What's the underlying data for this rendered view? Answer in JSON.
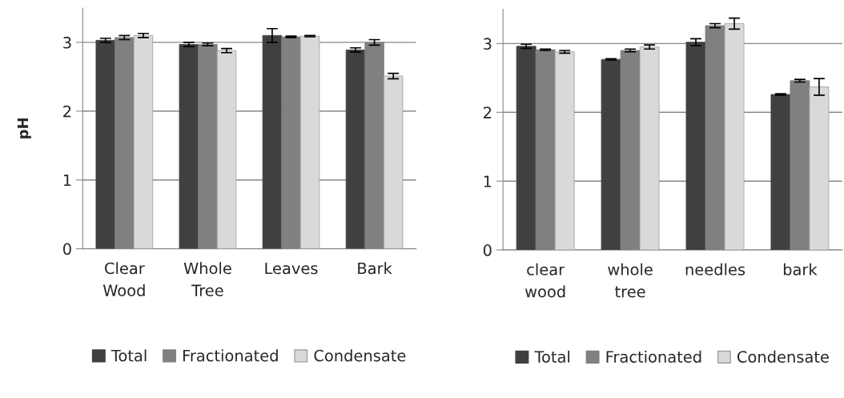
{
  "chart_data": [
    {
      "type": "bar",
      "ylabel": "pH",
      "categories": [
        "Clear\nWood",
        "Whole\nTree",
        "Leaves",
        "Bark"
      ],
      "ylim": [
        0,
        3.5
      ],
      "yticks": [
        0,
        1,
        2,
        3
      ],
      "grid": "y",
      "legend": "bottom",
      "series": [
        {
          "name": "Total",
          "color": "#404040",
          "values": [
            3.03,
            2.97,
            3.1,
            2.89
          ],
          "errors": [
            0.03,
            0.03,
            0.1,
            0.03
          ]
        },
        {
          "name": "Fractionated",
          "color": "#808080",
          "values": [
            3.07,
            2.97,
            3.08,
            3.0
          ],
          "errors": [
            0.03,
            0.02,
            0.01,
            0.04
          ]
        },
        {
          "name": "Condensate",
          "color": "#d9d9d9",
          "values": [
            3.1,
            2.88,
            3.09,
            2.51
          ],
          "errors": [
            0.03,
            0.03,
            0.01,
            0.04
          ]
        }
      ]
    },
    {
      "type": "bar",
      "categories": [
        "clear\nwood",
        "whole\ntree",
        "needles",
        "bark"
      ],
      "ylim": [
        0,
        3.5
      ],
      "yticks": [
        0,
        1,
        2,
        3
      ],
      "grid": "y",
      "legend": "bottom",
      "series": [
        {
          "name": "Total",
          "color": "#404040",
          "values": [
            2.96,
            2.77,
            3.02,
            2.26
          ],
          "errors": [
            0.03,
            0.01,
            0.05,
            0.01
          ]
        },
        {
          "name": "Fractionated",
          "color": "#808080",
          "values": [
            2.91,
            2.9,
            3.26,
            2.46
          ],
          "errors": [
            0.01,
            0.02,
            0.03,
            0.02
          ]
        },
        {
          "name": "Condensate",
          "color": "#d9d9d9",
          "values": [
            2.88,
            2.95,
            3.29,
            2.37
          ],
          "errors": [
            0.02,
            0.03,
            0.08,
            0.12
          ]
        }
      ]
    }
  ]
}
